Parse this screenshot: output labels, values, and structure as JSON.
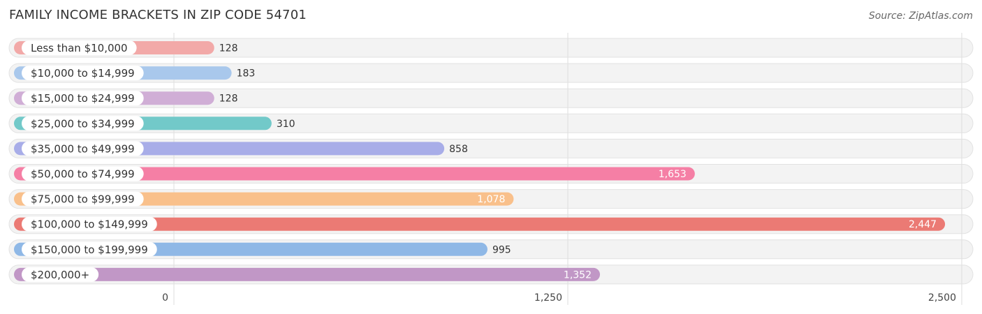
{
  "chart_data": {
    "type": "bar",
    "orientation": "horizontal",
    "title": "FAMILY INCOME BRACKETS IN ZIP CODE 54701",
    "source": "Source: ZipAtlas.com",
    "categories": [
      "Less than $10,000",
      "$10,000 to $14,999",
      "$15,000 to $24,999",
      "$25,000 to $34,999",
      "$35,000 to $49,999",
      "$50,000 to $74,999",
      "$75,000 to $99,999",
      "$100,000 to $149,999",
      "$150,000 to $199,999",
      "$200,000+"
    ],
    "values": [
      128,
      183,
      128,
      310,
      858,
      1653,
      1078,
      2447,
      995,
      1352
    ],
    "value_labels": [
      "128",
      "183",
      "128",
      "310",
      "858",
      "1,653",
      "1,078",
      "2,447",
      "995",
      "1,352"
    ],
    "colors": [
      "#f2a9a8",
      "#a9c8ec",
      "#d0aed6",
      "#72c9c9",
      "#a8ade8",
      "#f57fa5",
      "#f9c08b",
      "#eb7a74",
      "#8fb8e6",
      "#c197c6"
    ],
    "xlim": [
      0,
      2500
    ],
    "xticks": [
      0,
      1250,
      2500
    ],
    "xtick_labels": [
      "0",
      "1,250",
      "2,500"
    ],
    "grid": true,
    "legend": "none"
  }
}
